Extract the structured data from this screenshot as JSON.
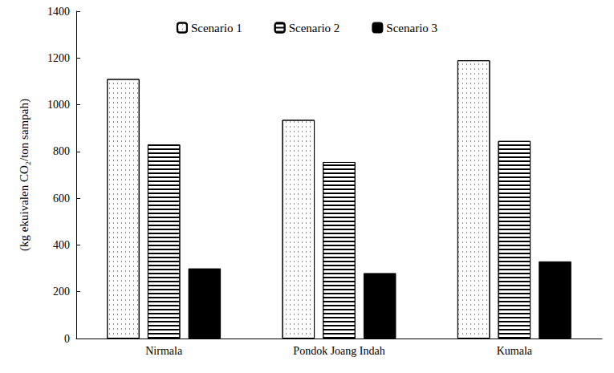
{
  "chart_data": {
    "type": "bar",
    "y_label": "(kg ekuivalen CO₂/ton sampah)",
    "categories": [
      "Nirmala",
      "Pondok Joang Indah",
      "Kumala"
    ],
    "series": [
      {
        "name": "Scenario 1",
        "color": "#ffffff",
        "values": [
          1110,
          935,
          1190
        ]
      },
      {
        "name": "Scenario 2",
        "color": "#ffffff",
        "values": [
          830,
          755,
          845
        ]
      },
      {
        "name": "Scenario 3",
        "color": "#000000",
        "values": [
          300,
          280,
          330
        ]
      }
    ],
    "ylim": [
      0,
      1400
    ],
    "yticks": [
      0,
      200,
      400,
      600,
      800,
      1000,
      1200,
      1400
    ],
    "grid": false,
    "legend": "top"
  }
}
